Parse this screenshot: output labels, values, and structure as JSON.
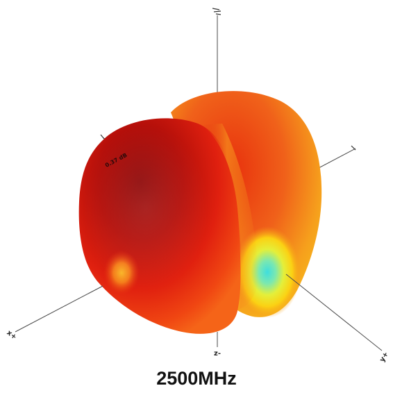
{
  "figure": {
    "caption": "2500MHz",
    "axes": {
      "z_label": "z",
      "x_label": "x+",
      "y_label": "y+",
      "z_neg_label": "z-"
    },
    "lobe_value_label": "0.37 dB",
    "colormap": {
      "max": "#8f0808",
      "high": "#e51d0e",
      "mid": "#f5731a",
      "low": "#ffd400",
      "min": "#40e0d8"
    }
  }
}
